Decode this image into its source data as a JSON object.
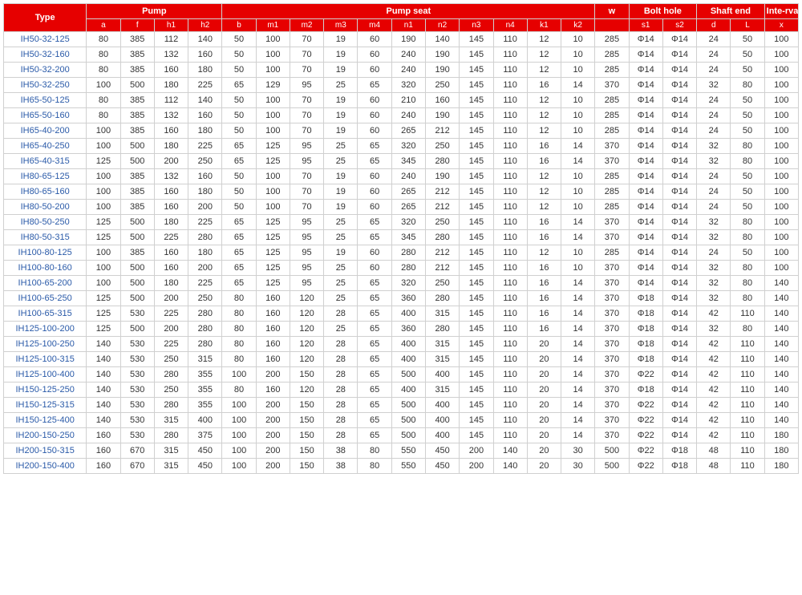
{
  "table": {
    "header_bg": "#e60000",
    "header_fg": "#ffffff",
    "border_color": "#d0d0d0",
    "type_color": "#2a5aa8",
    "groups": [
      {
        "label": "Type",
        "span": 1,
        "subs": null
      },
      {
        "label": "Pump",
        "span": 4,
        "subs": [
          "a",
          "f",
          "h1",
          "h2"
        ]
      },
      {
        "label": "Pump seat",
        "span": 11,
        "subs": [
          "b",
          "m1",
          "m2",
          "m3",
          "m4",
          "n1",
          "n2",
          "n3",
          "n4",
          "k1",
          "k2"
        ]
      },
      {
        "label": "w",
        "span": 1,
        "subs": [
          ""
        ]
      },
      {
        "label": "Bolt hole",
        "span": 2,
        "subs": [
          "s1",
          "s2"
        ]
      },
      {
        "label": "Shaft end",
        "span": 2,
        "subs": [
          "d",
          "L"
        ]
      },
      {
        "label": "Inte-rval",
        "span": 1,
        "subs": [
          "x"
        ]
      }
    ],
    "rows": [
      [
        "IH50-32-125",
        "80",
        "385",
        "112",
        "140",
        "50",
        "100",
        "70",
        "19",
        "60",
        "190",
        "140",
        "145",
        "110",
        "12",
        "10",
        "285",
        "Φ14",
        "Φ14",
        "24",
        "50",
        "100"
      ],
      [
        "IH50-32-160",
        "80",
        "385",
        "132",
        "160",
        "50",
        "100",
        "70",
        "19",
        "60",
        "240",
        "190",
        "145",
        "110",
        "12",
        "10",
        "285",
        "Φ14",
        "Φ14",
        "24",
        "50",
        "100"
      ],
      [
        "IH50-32-200",
        "80",
        "385",
        "160",
        "180",
        "50",
        "100",
        "70",
        "19",
        "60",
        "240",
        "190",
        "145",
        "110",
        "12",
        "10",
        "285",
        "Φ14",
        "Φ14",
        "24",
        "50",
        "100"
      ],
      [
        "IH50-32-250",
        "100",
        "500",
        "180",
        "225",
        "65",
        "129",
        "95",
        "25",
        "65",
        "320",
        "250",
        "145",
        "110",
        "16",
        "14",
        "370",
        "Φ14",
        "Φ14",
        "32",
        "80",
        "100"
      ],
      [
        "IH65-50-125",
        "80",
        "385",
        "112",
        "140",
        "50",
        "100",
        "70",
        "19",
        "60",
        "210",
        "160",
        "145",
        "110",
        "12",
        "10",
        "285",
        "Φ14",
        "Φ14",
        "24",
        "50",
        "100"
      ],
      [
        "IH65-50-160",
        "80",
        "385",
        "132",
        "160",
        "50",
        "100",
        "70",
        "19",
        "60",
        "240",
        "190",
        "145",
        "110",
        "12",
        "10",
        "285",
        "Φ14",
        "Φ14",
        "24",
        "50",
        "100"
      ],
      [
        "IH65-40-200",
        "100",
        "385",
        "160",
        "180",
        "50",
        "100",
        "70",
        "19",
        "60",
        "265",
        "212",
        "145",
        "110",
        "12",
        "10",
        "285",
        "Φ14",
        "Φ14",
        "24",
        "50",
        "100"
      ],
      [
        "IH65-40-250",
        "100",
        "500",
        "180",
        "225",
        "65",
        "125",
        "95",
        "25",
        "65",
        "320",
        "250",
        "145",
        "110",
        "16",
        "14",
        "370",
        "Φ14",
        "Φ14",
        "32",
        "80",
        "100"
      ],
      [
        "IH65-40-315",
        "125",
        "500",
        "200",
        "250",
        "65",
        "125",
        "95",
        "25",
        "65",
        "345",
        "280",
        "145",
        "110",
        "16",
        "14",
        "370",
        "Φ14",
        "Φ14",
        "32",
        "80",
        "100"
      ],
      [
        "IH80-65-125",
        "100",
        "385",
        "132",
        "160",
        "50",
        "100",
        "70",
        "19",
        "60",
        "240",
        "190",
        "145",
        "110",
        "12",
        "10",
        "285",
        "Φ14",
        "Φ14",
        "24",
        "50",
        "100"
      ],
      [
        "IH80-65-160",
        "100",
        "385",
        "160",
        "180",
        "50",
        "100",
        "70",
        "19",
        "60",
        "265",
        "212",
        "145",
        "110",
        "12",
        "10",
        "285",
        "Φ14",
        "Φ14",
        "24",
        "50",
        "100"
      ],
      [
        "IH80-50-200",
        "100",
        "385",
        "160",
        "200",
        "50",
        "100",
        "70",
        "19",
        "60",
        "265",
        "212",
        "145",
        "110",
        "12",
        "10",
        "285",
        "Φ14",
        "Φ14",
        "24",
        "50",
        "100"
      ],
      [
        "IH80-50-250",
        "125",
        "500",
        "180",
        "225",
        "65",
        "125",
        "95",
        "25",
        "65",
        "320",
        "250",
        "145",
        "110",
        "16",
        "14",
        "370",
        "Φ14",
        "Φ14",
        "32",
        "80",
        "100"
      ],
      [
        "IH80-50-315",
        "125",
        "500",
        "225",
        "280",
        "65",
        "125",
        "95",
        "25",
        "65",
        "345",
        "280",
        "145",
        "110",
        "16",
        "14",
        "370",
        "Φ14",
        "Φ14",
        "32",
        "80",
        "100"
      ],
      [
        "IH100-80-125",
        "100",
        "385",
        "160",
        "180",
        "65",
        "125",
        "95",
        "19",
        "60",
        "280",
        "212",
        "145",
        "110",
        "12",
        "10",
        "285",
        "Φ14",
        "Φ14",
        "24",
        "50",
        "100"
      ],
      [
        "IH100-80-160",
        "100",
        "500",
        "160",
        "200",
        "65",
        "125",
        "95",
        "25",
        "60",
        "280",
        "212",
        "145",
        "110",
        "16",
        "10",
        "370",
        "Φ14",
        "Φ14",
        "32",
        "80",
        "100"
      ],
      [
        "IH100-65-200",
        "100",
        "500",
        "180",
        "225",
        "65",
        "125",
        "95",
        "25",
        "65",
        "320",
        "250",
        "145",
        "110",
        "16",
        "14",
        "370",
        "Φ14",
        "Φ14",
        "32",
        "80",
        "140"
      ],
      [
        "IH100-65-250",
        "125",
        "500",
        "200",
        "250",
        "80",
        "160",
        "120",
        "25",
        "65",
        "360",
        "280",
        "145",
        "110",
        "16",
        "14",
        "370",
        "Φ18",
        "Φ14",
        "32",
        "80",
        "140"
      ],
      [
        "IH100-65-315",
        "125",
        "530",
        "225",
        "280",
        "80",
        "160",
        "120",
        "28",
        "65",
        "400",
        "315",
        "145",
        "110",
        "16",
        "14",
        "370",
        "Φ18",
        "Φ14",
        "42",
        "110",
        "140"
      ],
      [
        "IH125-100-200",
        "125",
        "500",
        "200",
        "280",
        "80",
        "160",
        "120",
        "25",
        "65",
        "360",
        "280",
        "145",
        "110",
        "16",
        "14",
        "370",
        "Φ18",
        "Φ14",
        "32",
        "80",
        "140"
      ],
      [
        "IH125-100-250",
        "140",
        "530",
        "225",
        "280",
        "80",
        "160",
        "120",
        "28",
        "65",
        "400",
        "315",
        "145",
        "110",
        "20",
        "14",
        "370",
        "Φ18",
        "Φ14",
        "42",
        "110",
        "140"
      ],
      [
        "IH125-100-315",
        "140",
        "530",
        "250",
        "315",
        "80",
        "160",
        "120",
        "28",
        "65",
        "400",
        "315",
        "145",
        "110",
        "20",
        "14",
        "370",
        "Φ18",
        "Φ14",
        "42",
        "110",
        "140"
      ],
      [
        "IH125-100-400",
        "140",
        "530",
        "280",
        "355",
        "100",
        "200",
        "150",
        "28",
        "65",
        "500",
        "400",
        "145",
        "110",
        "20",
        "14",
        "370",
        "Φ22",
        "Φ14",
        "42",
        "110",
        "140"
      ],
      [
        "IH150-125-250",
        "140",
        "530",
        "250",
        "355",
        "80",
        "160",
        "120",
        "28",
        "65",
        "400",
        "315",
        "145",
        "110",
        "20",
        "14",
        "370",
        "Φ18",
        "Φ14",
        "42",
        "110",
        "140"
      ],
      [
        "IH150-125-315",
        "140",
        "530",
        "280",
        "355",
        "100",
        "200",
        "150",
        "28",
        "65",
        "500",
        "400",
        "145",
        "110",
        "20",
        "14",
        "370",
        "Φ22",
        "Φ14",
        "42",
        "110",
        "140"
      ],
      [
        "IH150-125-400",
        "140",
        "530",
        "315",
        "400",
        "100",
        "200",
        "150",
        "28",
        "65",
        "500",
        "400",
        "145",
        "110",
        "20",
        "14",
        "370",
        "Φ22",
        "Φ14",
        "42",
        "110",
        "140"
      ],
      [
        "IH200-150-250",
        "160",
        "530",
        "280",
        "375",
        "100",
        "200",
        "150",
        "28",
        "65",
        "500",
        "400",
        "145",
        "110",
        "20",
        "14",
        "370",
        "Φ22",
        "Φ14",
        "42",
        "110",
        "180"
      ],
      [
        "IH200-150-315",
        "160",
        "670",
        "315",
        "450",
        "100",
        "200",
        "150",
        "38",
        "80",
        "550",
        "450",
        "200",
        "140",
        "20",
        "30",
        "500",
        "Φ22",
        "Φ18",
        "48",
        "110",
        "180"
      ],
      [
        "IH200-150-400",
        "160",
        "670",
        "315",
        "450",
        "100",
        "200",
        "150",
        "38",
        "80",
        "550",
        "450",
        "200",
        "140",
        "20",
        "30",
        "500",
        "Φ22",
        "Φ18",
        "48",
        "110",
        "180"
      ]
    ]
  }
}
